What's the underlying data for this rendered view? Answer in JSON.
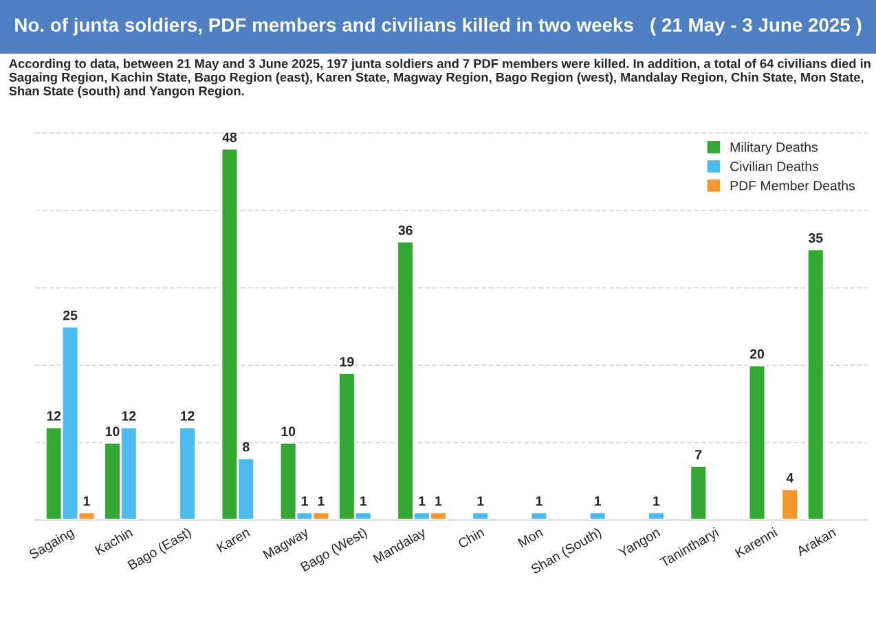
{
  "chart_data": {
    "type": "bar",
    "title": "No. of junta soldiers, PDF members and civilians killed in two weeks   ( 21 May - 3 June 2025 )",
    "subtitle": "According to data, between 21 May and 3 June 2025, 197 junta soldiers and 7 PDF members were killed. In addition, a total of 64 civilians died in Sagaing Region, Kachin State, Bago Region (east), Karen State, Magway Region, Bago Region (west), Mandalay Region, Chin State, Mon State, Shan State (south) and Yangon Region.",
    "categories": [
      "Sagaing",
      "Kachin",
      "Bago (East)",
      "Karen",
      "Magway",
      "Bago (West)",
      "Mandalay",
      "Chin",
      "Mon",
      "Shan (South)",
      "Yangon",
      "Tanintharyi",
      "Karenni",
      "Arakan"
    ],
    "series": [
      {
        "name": "Military Deaths",
        "color": "#33a833",
        "values": [
          12,
          10,
          null,
          48,
          10,
          19,
          36,
          null,
          null,
          null,
          null,
          7,
          20,
          35
        ]
      },
      {
        "name": "Civilian Deaths",
        "color": "#4dbbee",
        "values": [
          25,
          12,
          12,
          8,
          1,
          1,
          1,
          1,
          1,
          1,
          1,
          null,
          null,
          null
        ]
      },
      {
        "name": "PDF Member Deaths",
        "color": "#f7962d",
        "values": [
          1,
          null,
          null,
          null,
          1,
          null,
          1,
          null,
          null,
          null,
          null,
          null,
          4,
          null
        ]
      }
    ],
    "yticks": [
      {
        "value": 0,
        "label": null
      },
      {
        "value": 10,
        "label": null
      },
      {
        "value": 20,
        "label": null
      },
      {
        "value": 30,
        "label": null
      },
      {
        "value": 40,
        "label": null
      },
      {
        "value": 50,
        "label": null
      }
    ],
    "grid": "y",
    "legend": "top right",
    "data_labels": true,
    "tick_labels": "x"
  }
}
